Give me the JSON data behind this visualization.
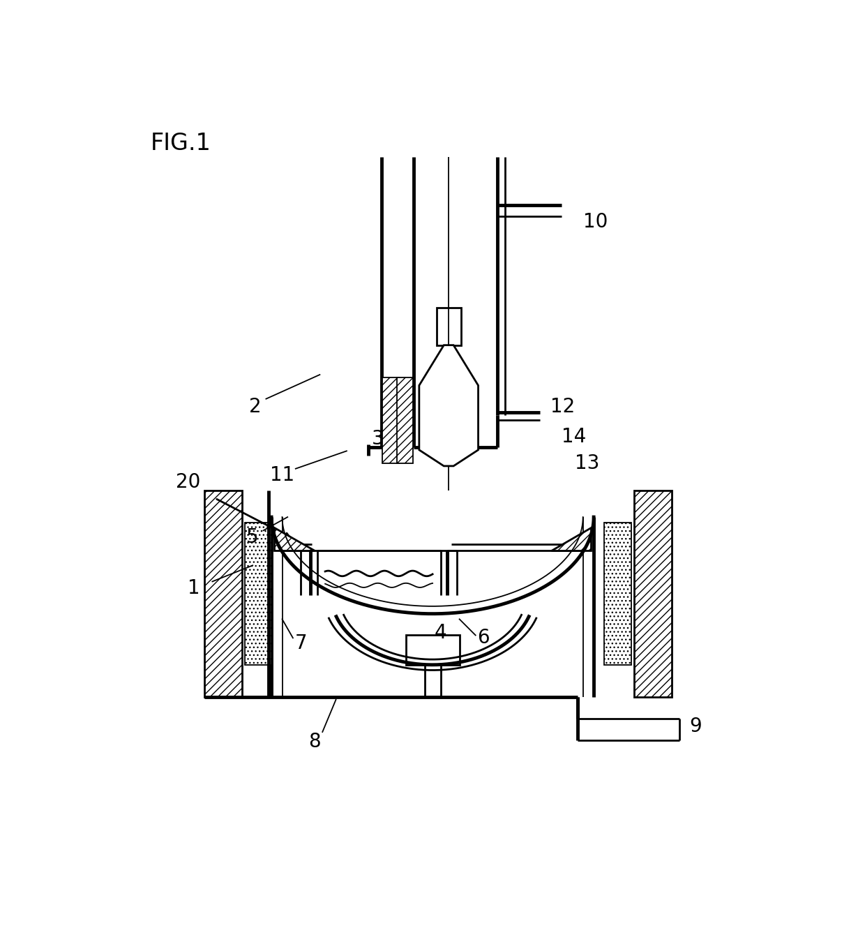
{
  "background": "#ffffff",
  "line_color": "#000000",
  "title": "FIG.1",
  "lw": 2.0,
  "lw_thin": 1.3,
  "lw_thick": 3.5,
  "label_fs": 20,
  "title_fs": 24
}
